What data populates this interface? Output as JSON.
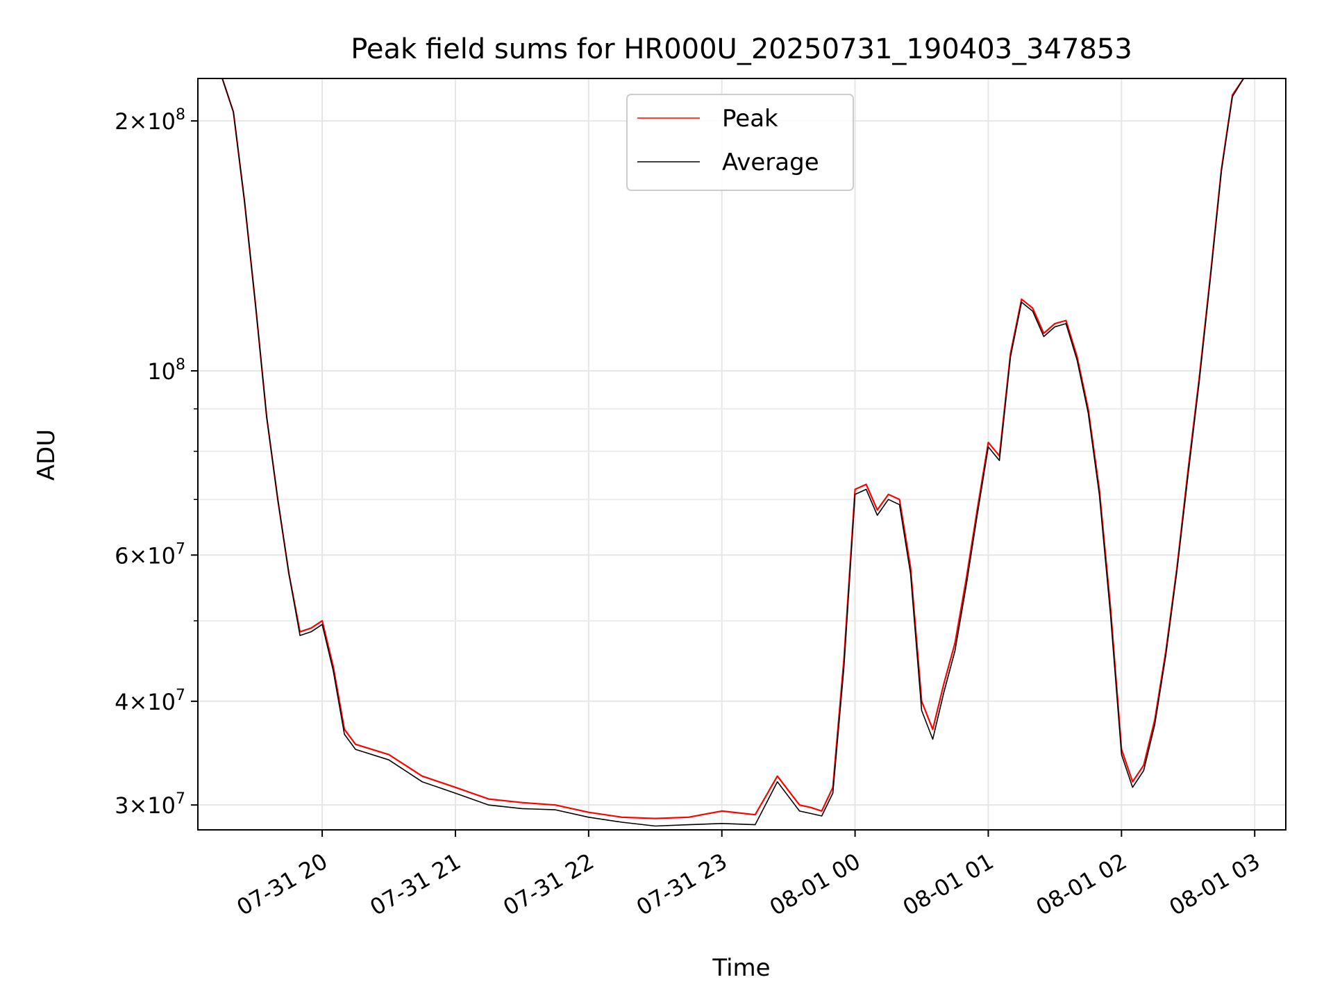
{
  "chart_data": {
    "type": "line",
    "title": "Peak field sums for HR000U_20250731_190403_347853",
    "xlabel": "Time",
    "ylabel": "ADU",
    "yscale": "log",
    "ylim": [
      28000000,
      225000000
    ],
    "xlim": [
      "2025-07-31 19:04",
      "2025-08-01 03:14"
    ],
    "grid": true,
    "legend_position": "upper center",
    "x_ticks": [
      "07-31 20",
      "07-31 21",
      "07-31 22",
      "07-31 23",
      "08-01 00",
      "08-01 01",
      "08-01 02",
      "08-01 03"
    ],
    "y_ticks": [
      {
        "value": 200000000,
        "mantissa": "2",
        "exponent": "8"
      },
      {
        "value": 100000000,
        "mantissa": "",
        "exponent": "8"
      },
      {
        "value": 60000000,
        "mantissa": "6",
        "exponent": "7"
      },
      {
        "value": 40000000,
        "mantissa": "4",
        "exponent": "7"
      },
      {
        "value": 30000000,
        "mantissa": "3",
        "exponent": "7"
      }
    ],
    "y_minor_ticks": [
      90000000,
      80000000,
      70000000,
      50000000
    ],
    "series": [
      {
        "name": "Peak",
        "color": "#ff0000",
        "x": [
          "2025-07-31 19:15",
          "2025-07-31 19:20",
          "2025-07-31 19:25",
          "2025-07-31 19:30",
          "2025-07-31 19:35",
          "2025-07-31 19:40",
          "2025-07-31 19:45",
          "2025-07-31 19:50",
          "2025-07-31 19:55",
          "2025-07-31 20:00",
          "2025-07-31 20:05",
          "2025-07-31 20:10",
          "2025-07-31 20:15",
          "2025-07-31 20:30",
          "2025-07-31 20:45",
          "2025-07-31 21:00",
          "2025-07-31 21:15",
          "2025-07-31 21:30",
          "2025-07-31 21:45",
          "2025-07-31 22:00",
          "2025-07-31 22:15",
          "2025-07-31 22:30",
          "2025-07-31 22:45",
          "2025-07-31 23:00",
          "2025-07-31 23:15",
          "2025-07-31 23:25",
          "2025-07-31 23:35",
          "2025-07-31 23:40",
          "2025-07-31 23:45",
          "2025-07-31 23:50",
          "2025-07-31 23:55",
          "2025-08-01 00:00",
          "2025-08-01 00:05",
          "2025-08-01 00:10",
          "2025-08-01 00:15",
          "2025-08-01 00:20",
          "2025-08-01 00:25",
          "2025-08-01 00:30",
          "2025-08-01 00:35",
          "2025-08-01 00:40",
          "2025-08-01 00:45",
          "2025-08-01 00:50",
          "2025-08-01 00:55",
          "2025-08-01 01:00",
          "2025-08-01 01:05",
          "2025-08-01 01:10",
          "2025-08-01 01:15",
          "2025-08-01 01:20",
          "2025-08-01 01:25",
          "2025-08-01 01:30",
          "2025-08-01 01:35",
          "2025-08-01 01:40",
          "2025-08-01 01:45",
          "2025-08-01 01:50",
          "2025-08-01 01:55",
          "2025-08-01 02:00",
          "2025-08-01 02:05",
          "2025-08-01 02:10",
          "2025-08-01 02:15",
          "2025-08-01 02:20",
          "2025-08-01 02:25",
          "2025-08-01 02:30",
          "2025-08-01 02:35",
          "2025-08-01 02:40",
          "2025-08-01 02:45",
          "2025-08-01 02:50",
          "2025-08-01 02:55"
        ],
        "values": [
          225000000,
          205000000,
          160000000,
          120000000,
          88000000,
          70000000,
          57000000,
          48500000,
          49000000,
          50000000,
          44000000,
          37000000,
          35500000,
          34500000,
          32500000,
          31500000,
          30500000,
          30200000,
          30000000,
          29400000,
          29000000,
          28900000,
          29000000,
          29500000,
          29200000,
          32500000,
          30000000,
          29800000,
          29500000,
          31500000,
          45000000,
          72000000,
          73000000,
          68000000,
          71000000,
          70000000,
          58000000,
          40000000,
          37000000,
          42000000,
          47000000,
          56000000,
          68000000,
          82000000,
          79000000,
          105000000,
          122000000,
          119000000,
          111000000,
          114000000,
          115000000,
          104000000,
          90000000,
          72000000,
          52000000,
          35000000,
          32000000,
          33500000,
          38000000,
          46000000,
          58000000,
          76000000,
          98000000,
          130000000,
          175000000,
          215000000,
          225000000
        ]
      },
      {
        "name": "Average",
        "color": "#000000",
        "x": [
          "2025-07-31 19:15",
          "2025-07-31 19:20",
          "2025-07-31 19:25",
          "2025-07-31 19:30",
          "2025-07-31 19:35",
          "2025-07-31 19:40",
          "2025-07-31 19:45",
          "2025-07-31 19:50",
          "2025-07-31 19:55",
          "2025-07-31 20:00",
          "2025-07-31 20:05",
          "2025-07-31 20:10",
          "2025-07-31 20:15",
          "2025-07-31 20:30",
          "2025-07-31 20:45",
          "2025-07-31 21:00",
          "2025-07-31 21:15",
          "2025-07-31 21:30",
          "2025-07-31 21:45",
          "2025-07-31 22:00",
          "2025-07-31 22:15",
          "2025-07-31 22:30",
          "2025-07-31 22:45",
          "2025-07-31 23:00",
          "2025-07-31 23:15",
          "2025-07-31 23:25",
          "2025-07-31 23:35",
          "2025-07-31 23:40",
          "2025-07-31 23:45",
          "2025-07-31 23:50",
          "2025-07-31 23:55",
          "2025-08-01 00:00",
          "2025-08-01 00:05",
          "2025-08-01 00:10",
          "2025-08-01 00:15",
          "2025-08-01 00:20",
          "2025-08-01 00:25",
          "2025-08-01 00:30",
          "2025-08-01 00:35",
          "2025-08-01 00:40",
          "2025-08-01 00:45",
          "2025-08-01 00:50",
          "2025-08-01 00:55",
          "2025-08-01 01:00",
          "2025-08-01 01:05",
          "2025-08-01 01:10",
          "2025-08-01 01:15",
          "2025-08-01 01:20",
          "2025-08-01 01:25",
          "2025-08-01 01:30",
          "2025-08-01 01:35",
          "2025-08-01 01:40",
          "2025-08-01 01:45",
          "2025-08-01 01:50",
          "2025-08-01 01:55",
          "2025-08-01 02:00",
          "2025-08-01 02:05",
          "2025-08-01 02:10",
          "2025-08-01 02:15",
          "2025-08-01 02:20",
          "2025-08-01 02:25",
          "2025-08-01 02:30",
          "2025-08-01 02:35",
          "2025-08-01 02:40",
          "2025-08-01 02:45",
          "2025-08-01 02:50",
          "2025-08-01 02:55"
        ],
        "values": [
          225000000,
          205000000,
          160000000,
          120000000,
          88000000,
          70000000,
          57000000,
          48000000,
          48500000,
          49500000,
          43500000,
          36500000,
          35000000,
          34000000,
          32000000,
          31000000,
          30000000,
          29700000,
          29600000,
          29000000,
          28600000,
          28300000,
          28400000,
          28500000,
          28400000,
          32000000,
          29500000,
          29300000,
          29100000,
          31000000,
          44000000,
          71000000,
          72000000,
          67000000,
          70000000,
          69000000,
          57000000,
          39000000,
          36000000,
          41000000,
          46000000,
          55000000,
          67000000,
          81000000,
          78000000,
          104000000,
          121000000,
          118000000,
          110000000,
          113000000,
          114000000,
          103000000,
          89000000,
          71000000,
          51000000,
          34500000,
          31500000,
          33000000,
          37500000,
          45500000,
          57500000,
          75000000,
          97000000,
          129000000,
          174000000,
          214000000,
          225000000
        ]
      }
    ]
  }
}
